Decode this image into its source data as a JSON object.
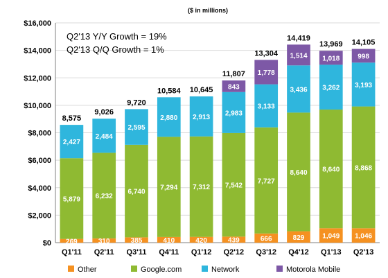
{
  "chart_data": {
    "type": "bar",
    "stacked": true,
    "subtitle": "($ in millions)",
    "categories": [
      "Q1'11",
      "Q2'11",
      "Q3'11",
      "Q4'11",
      "Q1'12",
      "Q2'12",
      "Q3'12",
      "Q4'12",
      "Q1'13",
      "Q2'13"
    ],
    "series": [
      {
        "name": "Other",
        "color": "#f59121",
        "values": [
          269,
          310,
          385,
          410,
          420,
          439,
          666,
          829,
          1049,
          1046
        ]
      },
      {
        "name": "Google.com",
        "color": "#8fba32",
        "values": [
          5879,
          6232,
          6740,
          7294,
          7312,
          7542,
          7727,
          8640,
          8640,
          8868
        ]
      },
      {
        "name": "Network",
        "color": "#2fb6dd",
        "values": [
          2427,
          2484,
          2595,
          2880,
          2913,
          2983,
          3133,
          3436,
          3262,
          3193
        ]
      },
      {
        "name": "Motorola Mobile",
        "color": "#7d58a6",
        "values": [
          0,
          0,
          0,
          0,
          0,
          843,
          1778,
          1514,
          1018,
          998
        ]
      }
    ],
    "segment_labels": [
      [
        "269",
        "310",
        "385",
        "410",
        "420",
        "439",
        "666",
        "829",
        "1,049",
        "1,046"
      ],
      [
        "5,879",
        "6,232",
        "6,740",
        "7,294",
        "7,312",
        "7,542",
        "7,727",
        "8,640",
        "8,640",
        "8,868"
      ],
      [
        "2,427",
        "2,484",
        "2,595",
        "2,880",
        "2,913",
        "2,983",
        "3,133",
        "3,436",
        "3,262",
        "3,193"
      ],
      [
        "",
        "",
        "",
        "",
        "",
        "843",
        "1,778",
        "1,514",
        "1,018",
        "998"
      ]
    ],
    "totals": [
      "8,575",
      "9,026",
      "9,720",
      "10,584",
      "10,645",
      "11,807",
      "13,304",
      "14,419",
      "13,969",
      "14,105"
    ],
    "yticks": [
      "$0",
      "$2,000",
      "$4,000",
      "$6,000",
      "$8,000",
      "$10,000",
      "$12,000",
      "$14,000",
      "$16,000"
    ],
    "ylim": [
      0,
      16000
    ],
    "grid": true,
    "legend_position": "bottom",
    "annotations": [
      "Q2'13 Y/Y Growth = 19%",
      "Q2'13 Q/Q Growth = 1%"
    ]
  }
}
